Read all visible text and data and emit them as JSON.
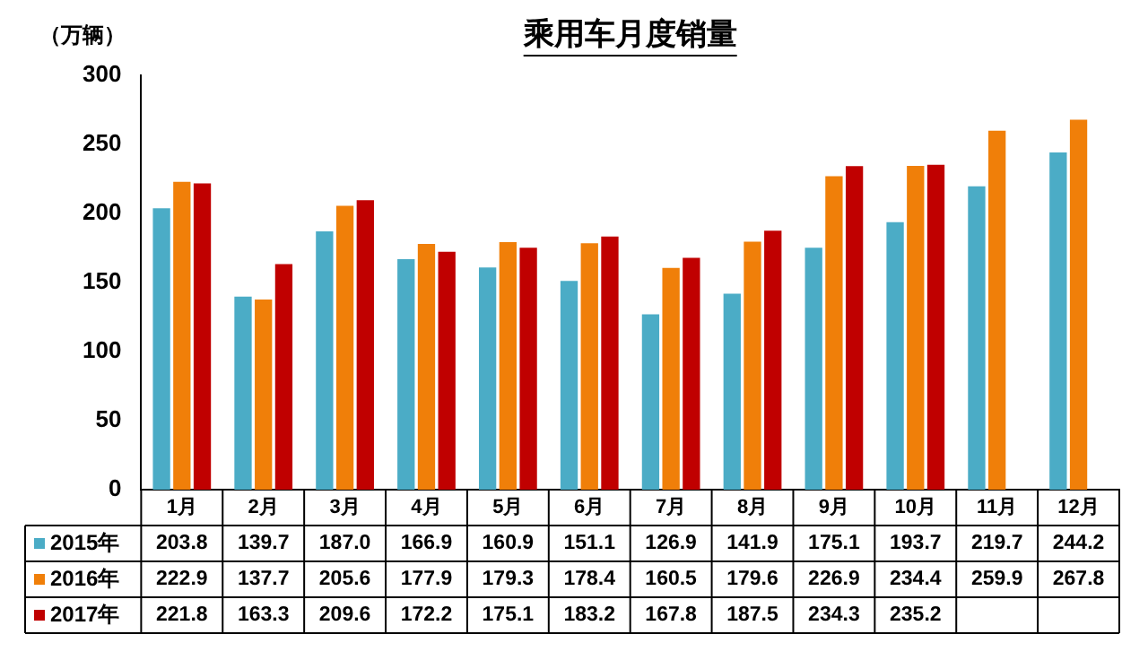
{
  "chart_data": {
    "type": "bar",
    "title": "乘用车月度销量",
    "ylabel": "（万辆）",
    "categories": [
      "1月",
      "2月",
      "3月",
      "4月",
      "5月",
      "6月",
      "7月",
      "8月",
      "9月",
      "10月",
      "11月",
      "12月"
    ],
    "series": [
      {
        "name": "2015年",
        "color": "#4bacc6",
        "values": [
          203.8,
          139.7,
          187.0,
          166.9,
          160.9,
          151.1,
          126.9,
          141.9,
          175.1,
          193.7,
          219.7,
          244.2
        ],
        "value_labels": [
          "203.8",
          "139.7",
          "187.0",
          "166.9",
          "160.9",
          "151.1",
          "126.9",
          "141.9",
          "175.1",
          "193.7",
          "219.7",
          "244.2"
        ]
      },
      {
        "name": "2016年",
        "color": "#f07f09",
        "values": [
          222.9,
          137.7,
          205.6,
          177.9,
          179.3,
          178.4,
          160.5,
          179.6,
          226.9,
          234.4,
          259.9,
          267.8
        ],
        "value_labels": [
          "222.9",
          "137.7",
          "205.6",
          "177.9",
          "179.3",
          "178.4",
          "160.5",
          "179.6",
          "226.9",
          "234.4",
          "259.9",
          "267.8"
        ]
      },
      {
        "name": "2017年",
        "color": "#c00000",
        "values": [
          221.8,
          163.3,
          209.6,
          172.2,
          175.1,
          183.2,
          167.8,
          187.5,
          234.3,
          235.2,
          null,
          null
        ],
        "value_labels": [
          "221.8",
          "163.3",
          "209.6",
          "172.2",
          "175.1",
          "183.2",
          "167.8",
          "187.5",
          "234.3",
          "235.2",
          null,
          null
        ]
      }
    ],
    "ylim": [
      0,
      300
    ],
    "yticks": [
      0,
      50,
      100,
      150,
      200,
      250,
      300
    ],
    "grid": false,
    "legend": "bottom"
  }
}
